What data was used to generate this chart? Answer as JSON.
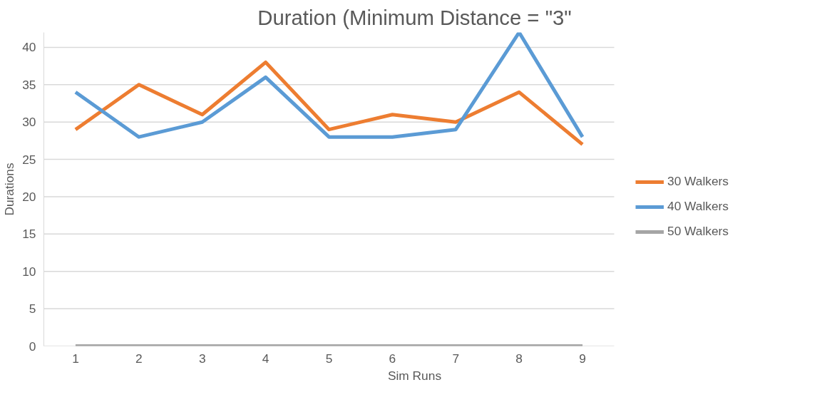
{
  "chart_data": {
    "type": "line",
    "title": "Duration (Minimum Distance = \"3\"",
    "xlabel": "Sim Runs",
    "ylabel": "Durations",
    "categories": [
      "1",
      "2",
      "3",
      "4",
      "5",
      "6",
      "7",
      "8",
      "9"
    ],
    "series": [
      {
        "name": "30 Walkers",
        "color": "#ed7d31",
        "values": [
          29,
          35,
          31,
          38,
          29,
          31,
          30,
          34,
          27
        ]
      },
      {
        "name": "40 Walkers",
        "color": "#5b9bd5",
        "values": [
          34,
          28,
          30,
          36,
          28,
          28,
          29,
          42,
          28
        ]
      },
      {
        "name": "50 Walkers",
        "color": "#a5a5a5",
        "values": [
          0,
          0,
          0,
          0,
          0,
          0,
          0,
          0,
          0
        ]
      }
    ],
    "ylim": [
      0,
      42
    ],
    "yticks": [
      0,
      5,
      10,
      15,
      20,
      25,
      30,
      35,
      40
    ],
    "grid": "y",
    "legend": "right",
    "marker": "none",
    "line_style": "solid"
  }
}
